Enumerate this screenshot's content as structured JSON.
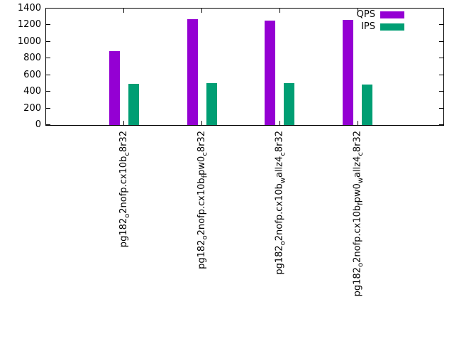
{
  "chart_data": {
    "type": "bar",
    "title": "",
    "xlabel": "",
    "ylabel": "",
    "ylim": [
      0,
      1400
    ],
    "yticks": [
      0,
      200,
      400,
      600,
      800,
      1000,
      1200,
      1400
    ],
    "grid": false,
    "legend_position": "top-right",
    "categories": [
      [
        {
          "t": "pg182"
        },
        {
          "t": "o",
          "sub": true
        },
        {
          "t": "2nofp.cx10b"
        },
        {
          "t": "c",
          "sub": true
        },
        {
          "t": "8r32"
        }
      ],
      [
        {
          "t": "pg182"
        },
        {
          "t": "o",
          "sub": true
        },
        {
          "t": "2nofp.cx10b"
        },
        {
          "t": "f",
          "sub": true
        },
        {
          "t": "pw0"
        },
        {
          "t": "c",
          "sub": true
        },
        {
          "t": "8r32"
        }
      ],
      [
        {
          "t": "pg182"
        },
        {
          "t": "o",
          "sub": true
        },
        {
          "t": "2nofp.cx10b"
        },
        {
          "t": "w",
          "sub": true
        },
        {
          "t": "allz4"
        },
        {
          "t": "c",
          "sub": true
        },
        {
          "t": "8r32"
        }
      ],
      [
        {
          "t": "pg182"
        },
        {
          "t": "o",
          "sub": true
        },
        {
          "t": "2nofp.cx10b"
        },
        {
          "t": "f",
          "sub": true
        },
        {
          "t": "pw0"
        },
        {
          "t": "w",
          "sub": true
        },
        {
          "t": "allz4"
        },
        {
          "t": "c",
          "sub": true
        },
        {
          "t": "8r32"
        }
      ]
    ],
    "series": [
      {
        "name": "QPS",
        "color": "#9400d3",
        "values": [
          890,
          1270,
          1255,
          1265
        ]
      },
      {
        "name": "IPS",
        "color": "#009e73",
        "values": [
          495,
          505,
          505,
          490
        ]
      }
    ]
  }
}
